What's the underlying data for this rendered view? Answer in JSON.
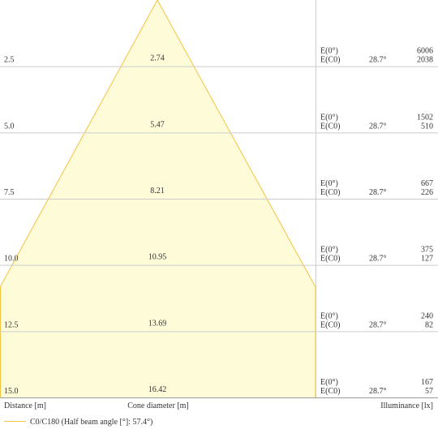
{
  "rows": [
    {
      "distance": "2.5",
      "diameter": "2.74",
      "e0_label": "E(0°)",
      "ec0_label": "E(C0)",
      "angle": "28.7°",
      "e0": "6006",
      "ec0": "2038"
    },
    {
      "distance": "5.0",
      "diameter": "5.47",
      "e0_label": "E(0°)",
      "ec0_label": "E(C0)",
      "angle": "28.7°",
      "e0": "1502",
      "ec0": "510"
    },
    {
      "distance": "7.5",
      "diameter": "8.21",
      "e0_label": "E(0°)",
      "ec0_label": "E(C0)",
      "angle": "28.7°",
      "e0": "667",
      "ec0": "226"
    },
    {
      "distance": "10.0",
      "diameter": "10.95",
      "e0_label": "E(0°)",
      "ec0_label": "E(C0)",
      "angle": "28.7°",
      "e0": "375",
      "ec0": "127"
    },
    {
      "distance": "12.5",
      "diameter": "13.69",
      "e0_label": "E(0°)",
      "ec0_label": "E(C0)",
      "angle": "28.7°",
      "e0": "240",
      "ec0": "82"
    },
    {
      "distance": "15.0",
      "diameter": "16.42",
      "e0_label": "E(0°)",
      "ec0_label": "E(C0)",
      "angle": "28.7°",
      "e0": "167",
      "ec0": "57"
    }
  ],
  "footer": {
    "distance": "Distance [m]",
    "diameter": "Cone diameter [m]",
    "illuminance": "Illuminance [lx]"
  },
  "legend": {
    "label": "C0/C180 (Half beam angle [°]: 57.4°)"
  }
}
